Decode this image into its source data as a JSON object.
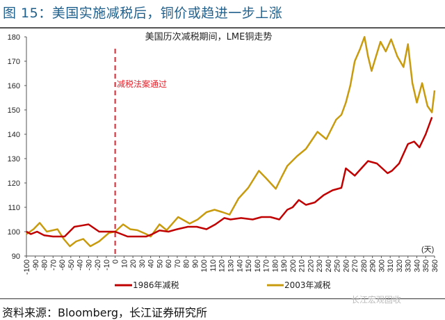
{
  "title": "图 15：美国实施减税后，铜价或趋进一步上涨",
  "source": "资料来源：Bloomberg，长江证券研究所",
  "watermark": "长江宏观固收",
  "chart_data": {
    "type": "line",
    "title": "美国历次减税期间，LME铜走势",
    "xlabel": "",
    "x_unit_label": "(天)",
    "ylabel": "",
    "xlim": [
      -100,
      360
    ],
    "ylim": [
      90,
      180
    ],
    "x_ticks": [
      -100,
      -90,
      -80,
      -70,
      -60,
      -50,
      -40,
      -30,
      -20,
      -10,
      0,
      10,
      20,
      30,
      40,
      50,
      60,
      70,
      80,
      90,
      100,
      110,
      120,
      130,
      140,
      150,
      160,
      170,
      180,
      190,
      200,
      210,
      220,
      230,
      240,
      250,
      260,
      270,
      280,
      290,
      300,
      310,
      320,
      330,
      340,
      350,
      360
    ],
    "y_ticks": [
      90,
      100,
      110,
      120,
      130,
      140,
      150,
      160,
      170,
      180
    ],
    "grid": false,
    "legend_position": "bottom",
    "annotation": {
      "x": 0,
      "text": "减税法案通过",
      "color": "#e8202a"
    },
    "series": [
      {
        "name": "1986年减税",
        "color": "#c00000",
        "x": [
          -100,
          -95,
          -88,
          -80,
          -70,
          -57,
          -46,
          -38,
          -30,
          -18,
          -8,
          0,
          7,
          14,
          25,
          35,
          42,
          50,
          60,
          70,
          82,
          92,
          103,
          113,
          123,
          130,
          142,
          155,
          165,
          175,
          185,
          194,
          200,
          207,
          215,
          225,
          235,
          245,
          255,
          260,
          270,
          280,
          285,
          295,
          307,
          312,
          320,
          330,
          337,
          343,
          350,
          357
        ],
        "values": [
          100,
          99,
          100,
          98.5,
          98,
          98,
          102,
          102.5,
          103,
          100,
          100,
          100,
          99,
          98,
          98,
          98,
          99,
          100.5,
          100,
          101,
          102,
          102,
          101,
          103,
          105.6,
          105,
          105.6,
          105,
          106,
          106,
          105,
          109,
          110,
          113,
          111,
          112,
          115,
          117,
          118,
          126,
          123,
          127,
          129,
          128,
          124,
          125,
          128,
          136,
          137,
          134.6,
          140,
          147
        ]
      },
      {
        "name": "2003年减税",
        "color": "#c89b0f",
        "x": [
          -100,
          -92,
          -85,
          -77,
          -65,
          -58,
          -51,
          -44,
          -36,
          -28,
          -18,
          -7,
          0,
          9,
          17,
          25,
          35,
          40,
          50,
          58,
          71,
          84,
          93,
          103,
          112,
          121,
          129,
          139,
          150,
          162,
          170,
          181,
          187,
          194,
          205,
          215,
          228,
          238,
          249,
          255,
          260,
          265,
          270,
          276,
          281,
          285,
          289,
          294,
          299,
          305,
          311,
          318,
          325,
          330,
          335,
          340,
          346,
          352,
          357,
          360
        ],
        "values": [
          99,
          101,
          103.6,
          100,
          101,
          97,
          94,
          96,
          97,
          94,
          96,
          99.5,
          100,
          103,
          101,
          100.6,
          99,
          98,
          103,
          100.6,
          106,
          103.3,
          105,
          108,
          109,
          108,
          107,
          113.6,
          118,
          125,
          122,
          117.6,
          122,
          127,
          131,
          134,
          141,
          138,
          146,
          148,
          153,
          160,
          170,
          175,
          180,
          172,
          166,
          172,
          178,
          174,
          179,
          172,
          167.6,
          177,
          161,
          153,
          161,
          151.6,
          149,
          158
        ]
      }
    ]
  }
}
